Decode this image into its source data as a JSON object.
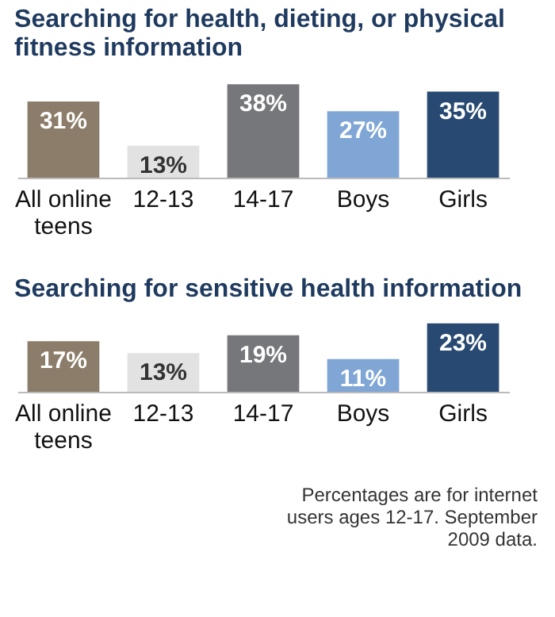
{
  "chart_data": [
    {
      "type": "bar",
      "title": "Searching for health, dieting, or physical fitness information",
      "categories": [
        "All online teens",
        "12-13",
        "14-17",
        "Boys",
        "Girls"
      ],
      "values": [
        31,
        13,
        38,
        27,
        35
      ],
      "colors": [
        "#8b7d69",
        "#e2e2e2",
        "#76777b",
        "#7fa6d4",
        "#284a72"
      ],
      "value_labels": [
        "31%",
        "13%",
        "38%",
        "27%",
        "35%"
      ]
    },
    {
      "type": "bar",
      "title": "Searching for sensitive health information",
      "categories": [
        "All online teens",
        "12-13",
        "14-17",
        "Boys",
        "Girls"
      ],
      "values": [
        17,
        13,
        19,
        11,
        23
      ],
      "colors": [
        "#8b7d69",
        "#e2e2e2",
        "#76777b",
        "#7fa6d4",
        "#284a72"
      ],
      "value_labels": [
        "17%",
        "13%",
        "19%",
        "11%",
        "23%"
      ],
      "annotations": [
        "Percentages are for internet users ages 12-17. September 2009 data."
      ]
    }
  ]
}
